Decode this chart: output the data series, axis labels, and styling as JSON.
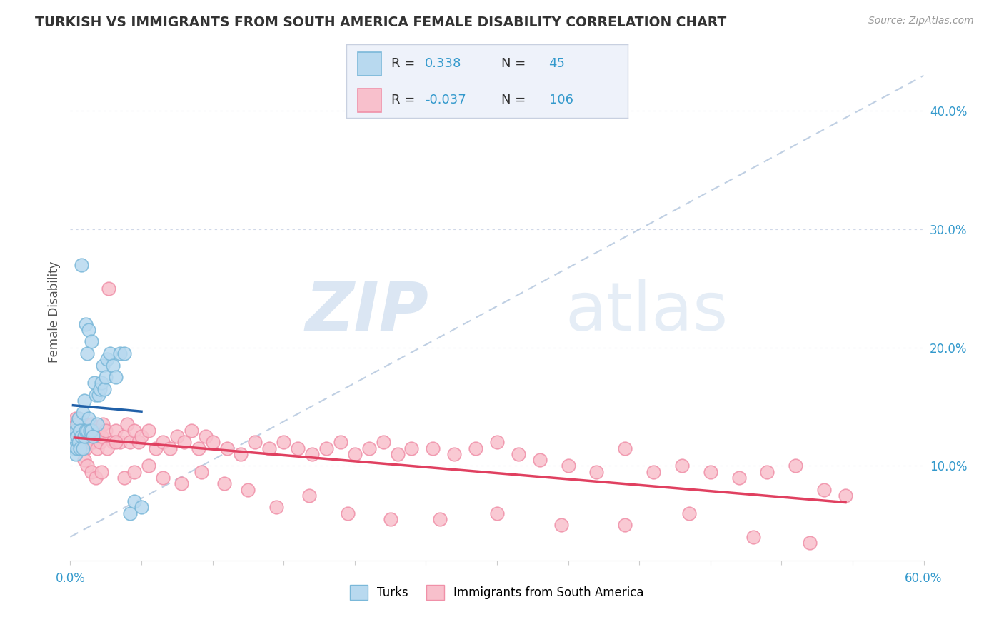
{
  "title": "TURKISH VS IMMIGRANTS FROM SOUTH AMERICA FEMALE DISABILITY CORRELATION CHART",
  "source": "Source: ZipAtlas.com",
  "ylabel": "Female Disability",
  "yticks": [
    0.1,
    0.2,
    0.3,
    0.4
  ],
  "ytick_labels": [
    "10.0%",
    "20.0%",
    "30.0%",
    "40.0%"
  ],
  "xlim": [
    0.0,
    0.6
  ],
  "ylim": [
    0.02,
    0.44
  ],
  "turks_R": 0.338,
  "turks_N": 45,
  "south_america_R": -0.037,
  "south_america_N": 106,
  "turks_color": "#7ab8d9",
  "turks_color_fill": "#b8d9ef",
  "south_america_color": "#f090a8",
  "south_america_color_fill": "#f8c0cc",
  "trend_blue_color": "#2060a8",
  "trend_pink_color": "#e04060",
  "ref_line_color": "#b0c4dc",
  "background_color": "#ffffff",
  "grid_color": "#d0d8e8",
  "legend_box_color": "#eef2fa",
  "legend_border_color": "#c8d0e0",
  "turks_x": [
    0.002,
    0.003,
    0.004,
    0.004,
    0.005,
    0.005,
    0.005,
    0.006,
    0.006,
    0.007,
    0.007,
    0.008,
    0.008,
    0.009,
    0.009,
    0.01,
    0.01,
    0.011,
    0.011,
    0.012,
    0.012,
    0.013,
    0.013,
    0.014,
    0.015,
    0.015,
    0.016,
    0.017,
    0.018,
    0.019,
    0.02,
    0.021,
    0.022,
    0.023,
    0.024,
    0.025,
    0.026,
    0.028,
    0.03,
    0.032,
    0.035,
    0.038,
    0.042,
    0.045,
    0.05
  ],
  "turks_y": [
    0.125,
    0.115,
    0.11,
    0.13,
    0.115,
    0.125,
    0.135,
    0.12,
    0.14,
    0.115,
    0.13,
    0.125,
    0.27,
    0.115,
    0.145,
    0.125,
    0.155,
    0.13,
    0.22,
    0.13,
    0.195,
    0.14,
    0.215,
    0.13,
    0.13,
    0.205,
    0.125,
    0.17,
    0.16,
    0.135,
    0.16,
    0.165,
    0.17,
    0.185,
    0.165,
    0.175,
    0.19,
    0.195,
    0.185,
    0.175,
    0.195,
    0.195,
    0.06,
    0.07,
    0.065
  ],
  "south_america_x": [
    0.003,
    0.004,
    0.004,
    0.005,
    0.005,
    0.006,
    0.006,
    0.007,
    0.007,
    0.008,
    0.008,
    0.009,
    0.009,
    0.01,
    0.01,
    0.011,
    0.012,
    0.013,
    0.014,
    0.015,
    0.016,
    0.017,
    0.018,
    0.019,
    0.02,
    0.021,
    0.022,
    0.023,
    0.025,
    0.027,
    0.03,
    0.032,
    0.035,
    0.038,
    0.04,
    0.042,
    0.045,
    0.048,
    0.05,
    0.055,
    0.06,
    0.065,
    0.07,
    0.075,
    0.08,
    0.085,
    0.09,
    0.095,
    0.1,
    0.11,
    0.12,
    0.13,
    0.14,
    0.15,
    0.16,
    0.17,
    0.18,
    0.19,
    0.2,
    0.21,
    0.22,
    0.23,
    0.24,
    0.255,
    0.27,
    0.285,
    0.3,
    0.315,
    0.33,
    0.35,
    0.37,
    0.39,
    0.41,
    0.43,
    0.45,
    0.47,
    0.49,
    0.51,
    0.53,
    0.545,
    0.01,
    0.012,
    0.015,
    0.018,
    0.022,
    0.026,
    0.032,
    0.038,
    0.045,
    0.055,
    0.065,
    0.078,
    0.092,
    0.108,
    0.125,
    0.145,
    0.168,
    0.195,
    0.225,
    0.26,
    0.3,
    0.345,
    0.39,
    0.435,
    0.48,
    0.52
  ],
  "south_america_y": [
    0.135,
    0.13,
    0.14,
    0.115,
    0.125,
    0.13,
    0.14,
    0.125,
    0.135,
    0.12,
    0.13,
    0.125,
    0.135,
    0.125,
    0.135,
    0.115,
    0.125,
    0.13,
    0.12,
    0.135,
    0.12,
    0.13,
    0.125,
    0.115,
    0.13,
    0.12,
    0.125,
    0.135,
    0.13,
    0.25,
    0.12,
    0.13,
    0.12,
    0.125,
    0.135,
    0.12,
    0.13,
    0.12,
    0.125,
    0.13,
    0.115,
    0.12,
    0.115,
    0.125,
    0.12,
    0.13,
    0.115,
    0.125,
    0.12,
    0.115,
    0.11,
    0.12,
    0.115,
    0.12,
    0.115,
    0.11,
    0.115,
    0.12,
    0.11,
    0.115,
    0.12,
    0.11,
    0.115,
    0.115,
    0.11,
    0.115,
    0.12,
    0.11,
    0.105,
    0.1,
    0.095,
    0.115,
    0.095,
    0.1,
    0.095,
    0.09,
    0.095,
    0.1,
    0.08,
    0.075,
    0.105,
    0.1,
    0.095,
    0.09,
    0.095,
    0.115,
    0.12,
    0.09,
    0.095,
    0.1,
    0.09,
    0.085,
    0.095,
    0.085,
    0.08,
    0.065,
    0.075,
    0.06,
    0.055,
    0.055,
    0.06,
    0.05,
    0.05,
    0.06,
    0.04,
    0.035
  ]
}
